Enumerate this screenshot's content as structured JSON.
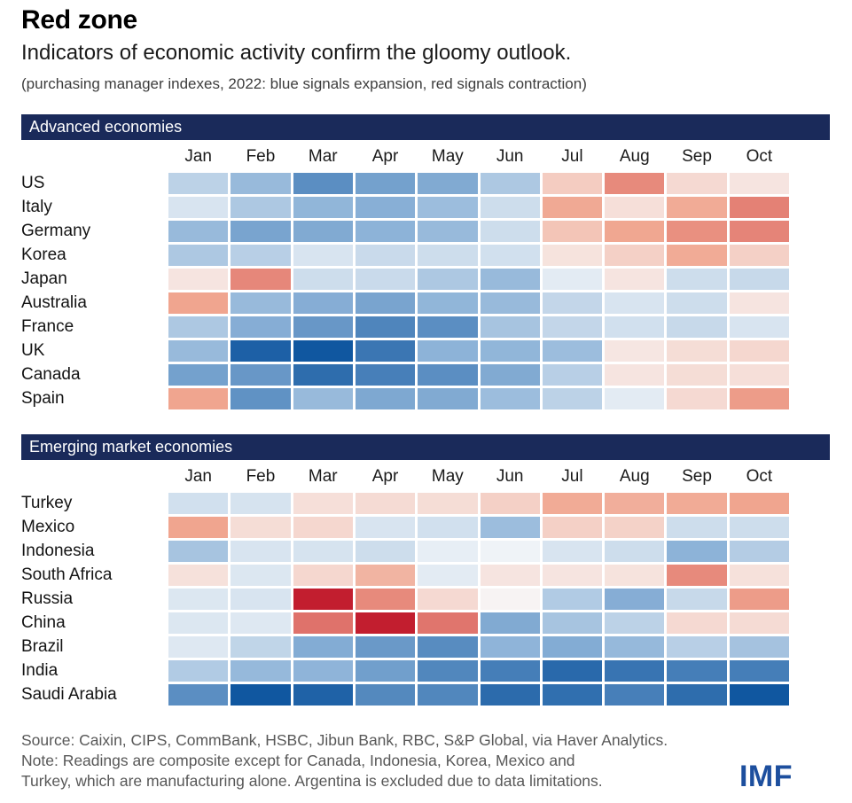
{
  "header": {
    "title": "Red zone",
    "subtitle": "Indicators of economic activity confirm the gloomy outlook.",
    "caption": "(purchasing manager indexes, 2022: blue signals expansion, red signals contraction)"
  },
  "colors": {
    "section_bar": "#1a2a5a",
    "logo": "#1d4f9e",
    "neutral": "#f8f9fa",
    "blue_mid": "#8db3d8",
    "blue_max": "#1057a0",
    "red_mid": "#f0a58f",
    "red_max": "#c21e2f"
  },
  "chart_data": [
    {
      "type": "heatmap",
      "title": "Advanced economies",
      "x": [
        "Jan",
        "Feb",
        "Mar",
        "Apr",
        "May",
        "Jun",
        "Jul",
        "Aug",
        "Sep",
        "Oct"
      ],
      "value_meaning": "purchasing manager index, 50 = neutral, above 50 blue expansion, below 50 red contraction",
      "scale": {
        "midpoint": 50,
        "blue_span": 10,
        "red_span": 9
      },
      "rows": [
        {
          "name": "US",
          "values": [
            52.8,
            54.5,
            57.0,
            56.0,
            55.5,
            53.5,
            47.6,
            44.6,
            48.3,
            48.9
          ]
        },
        {
          "name": "Italy",
          "values": [
            51.5,
            53.5,
            54.8,
            55.2,
            54.3,
            52.0,
            45.7,
            48.6,
            45.8,
            44.3
          ]
        },
        {
          "name": "Germany",
          "values": [
            54.5,
            55.8,
            55.5,
            55.0,
            54.5,
            52.0,
            47.2,
            45.6,
            44.8,
            44.4
          ]
        },
        {
          "name": "Korea",
          "values": [
            53.5,
            53.0,
            51.5,
            52.2,
            52.0,
            51.8,
            48.8,
            47.8,
            45.8,
            47.8
          ]
        },
        {
          "name": "Japan",
          "values": [
            48.9,
            44.5,
            52.0,
            52.2,
            53.5,
            54.5,
            51.0,
            48.9,
            52.0,
            52.3
          ]
        },
        {
          "name": "Australia",
          "values": [
            45.5,
            54.5,
            55.3,
            55.8,
            54.8,
            54.5,
            52.5,
            51.5,
            52.0,
            48.9
          ]
        },
        {
          "name": "France",
          "values": [
            53.5,
            55.3,
            56.5,
            57.5,
            57.0,
            53.8,
            52.5,
            51.8,
            52.3,
            51.5
          ]
        },
        {
          "name": "UK",
          "values": [
            54.5,
            59.5,
            60.5,
            58.3,
            55.0,
            54.8,
            54.3,
            49.0,
            48.5,
            48.2
          ]
        },
        {
          "name": "Canada",
          "values": [
            56.0,
            56.5,
            58.8,
            57.8,
            57.0,
            55.5,
            53.0,
            48.9,
            48.5,
            48.6
          ]
        },
        {
          "name": "Spain",
          "values": [
            45.5,
            56.8,
            54.5,
            55.6,
            55.5,
            54.3,
            52.8,
            51.0,
            48.3,
            45.2
          ]
        }
      ]
    },
    {
      "type": "heatmap",
      "title": "Emerging market economies",
      "x": [
        "Jan",
        "Feb",
        "Mar",
        "Apr",
        "May",
        "Jun",
        "Jul",
        "Aug",
        "Sep",
        "Oct"
      ],
      "value_meaning": "purchasing manager index, 50 = neutral, above 50 blue expansion, below 50 red contraction",
      "scale": {
        "midpoint": 50,
        "blue_span": 10,
        "red_span": 9
      },
      "rows": [
        {
          "name": "Turkey",
          "values": [
            51.8,
            51.6,
            48.6,
            48.4,
            48.5,
            47.8,
            45.8,
            46.0,
            45.8,
            45.5
          ]
        },
        {
          "name": "Mexico",
          "values": [
            45.5,
            48.5,
            48.2,
            51.5,
            51.8,
            54.3,
            47.8,
            47.9,
            52.0,
            52.0
          ]
        },
        {
          "name": "Indonesia",
          "values": [
            53.8,
            51.5,
            51.6,
            52.0,
            50.8,
            50.4,
            51.5,
            52.0,
            55.0,
            53.2
          ]
        },
        {
          "name": "South Africa",
          "values": [
            48.7,
            51.3,
            48.2,
            46.3,
            51.0,
            48.9,
            48.9,
            48.8,
            44.6,
            48.7
          ]
        },
        {
          "name": "Russia",
          "values": [
            51.3,
            51.5,
            38.0,
            44.6,
            48.3,
            49.7,
            53.3,
            55.3,
            52.3,
            45.2
          ]
        },
        {
          "name": "China",
          "values": [
            51.3,
            51.2,
            43.8,
            39.0,
            43.9,
            55.5,
            53.8,
            52.8,
            48.3,
            48.4
          ]
        },
        {
          "name": "Brazil",
          "values": [
            51.2,
            52.6,
            55.4,
            56.4,
            57.1,
            54.9,
            55.4,
            54.6,
            53.0,
            53.9
          ]
        },
        {
          "name": "India",
          "values": [
            53.3,
            54.6,
            54.9,
            56.1,
            57.4,
            57.9,
            59.0,
            58.4,
            57.9,
            57.9
          ]
        },
        {
          "name": "Saudi Arabia",
          "values": [
            57.0,
            60.8,
            59.4,
            57.3,
            57.4,
            58.9,
            58.7,
            57.8,
            58.8,
            60.8
          ]
        }
      ]
    }
  ],
  "footer": {
    "source": "Source: Caixin, CIPS, CommBank, HSBC, Jibun Bank, RBC, S&P Global, via Haver Analytics.",
    "note_line1": "Note: Readings are composite except for Canada, Indonesia, Korea, Mexico and",
    "note_line2": "Turkey, which are manufacturing alone. Argentina is excluded due to data limitations.",
    "logo": "IMF"
  }
}
